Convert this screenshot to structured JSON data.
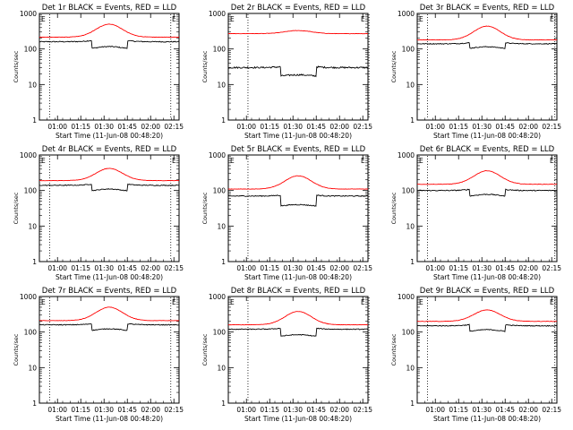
{
  "figure": {
    "xlabel": "Start Time (11-Jun-08 00:48:20)",
    "ylabel": "Counts/sec",
    "ytick_labels": [
      "1",
      "10",
      "100",
      "1000"
    ],
    "xtick_labels": [
      "01:00",
      "01:15",
      "01:30",
      "01:45",
      "02:00",
      "02:15"
    ],
    "corner_marker_left": "E",
    "corner_marker_right": "E",
    "colors": {
      "events": "#000000",
      "lld": "#ff0000",
      "axes": "#000000"
    }
  },
  "chart_data": [
    {
      "type": "line",
      "title": "Det 1r  BLACK = Events, RED = LLD",
      "ylim": [
        1,
        1000
      ],
      "yscale": "log",
      "x_minutes": [
        0,
        90
      ],
      "dotted_markers": [
        "00:55",
        "02:13"
      ],
      "series": [
        {
          "name": "Events",
          "color": "#000000",
          "base": 160,
          "peak": 195,
          "steps": [
            [
              34,
              0.6
            ],
            [
              57,
              1.7
            ]
          ],
          "noise": 0.03
        },
        {
          "name": "LLD",
          "color": "#ff0000",
          "base": 215,
          "peak": 500,
          "steps": [],
          "noise": 0.012
        }
      ]
    },
    {
      "type": "line",
      "title": "Det 2r  BLACK = Events, RED = LLD",
      "ylim": [
        1,
        1000
      ],
      "yscale": "log",
      "x_minutes": [
        0,
        90
      ],
      "dotted_markers": [
        "01:01",
        "02:19"
      ],
      "series": [
        {
          "name": "Events",
          "color": "#000000",
          "base": 30,
          "peak": 34,
          "steps": [
            [
              34,
              0.55
            ],
            [
              57,
              1.8
            ]
          ],
          "noise": 0.05
        },
        {
          "name": "LLD",
          "color": "#ff0000",
          "base": 270,
          "peak": 330,
          "steps": [],
          "noise": 0.012
        }
      ]
    },
    {
      "type": "line",
      "title": "Det 3r  BLACK = Events, RED = LLD",
      "ylim": [
        1,
        1000
      ],
      "yscale": "log",
      "x_minutes": [
        0,
        90
      ],
      "dotted_markers": [
        "00:55",
        "02:17"
      ],
      "series": [
        {
          "name": "Events",
          "color": "#000000",
          "base": 140,
          "peak": 165,
          "steps": [
            [
              34,
              0.7
            ],
            [
              57,
              1.5
            ]
          ],
          "noise": 0.025
        },
        {
          "name": "LLD",
          "color": "#ff0000",
          "base": 180,
          "peak": 440,
          "steps": [],
          "noise": 0.012
        }
      ]
    },
    {
      "type": "line",
      "title": "Det 4r  BLACK = Events, RED = LLD",
      "ylim": [
        1,
        1000
      ],
      "yscale": "log",
      "x_minutes": [
        0,
        90
      ],
      "dotted_markers": [
        "00:55",
        "02:13"
      ],
      "series": [
        {
          "name": "Events",
          "color": "#000000",
          "base": 140,
          "peak": 170,
          "steps": [
            [
              34,
              0.65
            ],
            [
              57,
              1.6
            ]
          ],
          "noise": 0.025
        },
        {
          "name": "LLD",
          "color": "#ff0000",
          "base": 190,
          "peak": 420,
          "steps": [],
          "noise": 0.012
        }
      ]
    },
    {
      "type": "line",
      "title": "Det 5r  BLACK = Events, RED = LLD",
      "ylim": [
        1,
        1000
      ],
      "yscale": "log",
      "x_minutes": [
        0,
        90
      ],
      "dotted_markers": [
        "01:01",
        "02:19"
      ],
      "series": [
        {
          "name": "Events",
          "color": "#000000",
          "base": 70,
          "peak": 80,
          "steps": [
            [
              34,
              0.5
            ],
            [
              57,
              2.0
            ]
          ],
          "noise": 0.03
        },
        {
          "name": "LLD",
          "color": "#ff0000",
          "base": 110,
          "peak": 260,
          "steps": [],
          "noise": 0.012
        }
      ]
    },
    {
      "type": "line",
      "title": "Det 6r  BLACK = Events, RED = LLD",
      "ylim": [
        1,
        1000
      ],
      "yscale": "log",
      "x_minutes": [
        0,
        90
      ],
      "dotted_markers": [
        "00:55",
        "02:17"
      ],
      "series": [
        {
          "name": "Events",
          "color": "#000000",
          "base": 100,
          "peak": 120,
          "steps": [
            [
              34,
              0.65
            ],
            [
              57,
              1.6
            ]
          ],
          "noise": 0.03
        },
        {
          "name": "LLD",
          "color": "#ff0000",
          "base": 150,
          "peak": 360,
          "steps": [],
          "noise": 0.012
        }
      ]
    },
    {
      "type": "line",
      "title": "Det 7r  BLACK = Events, RED = LLD",
      "ylim": [
        1,
        1000
      ],
      "yscale": "log",
      "x_minutes": [
        0,
        90
      ],
      "dotted_markers": [
        "00:55",
        "02:13"
      ],
      "series": [
        {
          "name": "Events",
          "color": "#000000",
          "base": 160,
          "peak": 190,
          "steps": [
            [
              34,
              0.65
            ],
            [
              57,
              1.6
            ]
          ],
          "noise": 0.025
        },
        {
          "name": "LLD",
          "color": "#ff0000",
          "base": 210,
          "peak": 500,
          "steps": [],
          "noise": 0.012
        }
      ]
    },
    {
      "type": "line",
      "title": "Det 8r  BLACK = Events, RED = LLD",
      "ylim": [
        1,
        1000
      ],
      "yscale": "log",
      "x_minutes": [
        0,
        90
      ],
      "dotted_markers": [
        "01:01",
        "02:19"
      ],
      "series": [
        {
          "name": "Events",
          "color": "#000000",
          "base": 120,
          "peak": 140,
          "steps": [
            [
              34,
              0.6
            ],
            [
              57,
              1.7
            ]
          ],
          "noise": 0.025
        },
        {
          "name": "LLD",
          "color": "#ff0000",
          "base": 160,
          "peak": 380,
          "steps": [],
          "noise": 0.012
        }
      ]
    },
    {
      "type": "line",
      "title": "Det 9r  BLACK = Events, RED = LLD",
      "ylim": [
        1,
        1000
      ],
      "yscale": "log",
      "x_minutes": [
        0,
        90
      ],
      "dotted_markers": [
        "00:55",
        "02:17"
      ],
      "series": [
        {
          "name": "Events",
          "color": "#000000",
          "base": 150,
          "peak": 180,
          "steps": [
            [
              34,
              0.65
            ],
            [
              57,
              1.6
            ]
          ],
          "noise": 0.025
        },
        {
          "name": "LLD",
          "color": "#ff0000",
          "base": 200,
          "peak": 420,
          "steps": [],
          "noise": 0.012
        }
      ]
    }
  ]
}
